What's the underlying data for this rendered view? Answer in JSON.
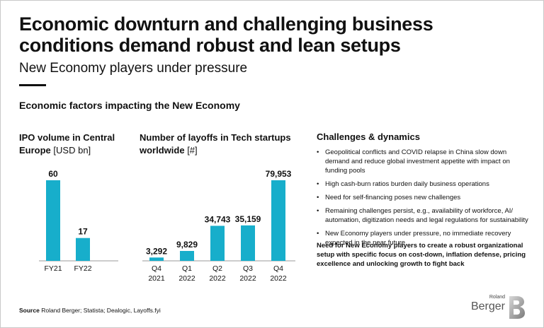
{
  "header": {
    "title": "Economic downturn and challenging business conditions demand robust and lean setups",
    "subtitle": "New Economy players under pressure",
    "section_title": "Economic factors impacting the New Economy"
  },
  "ipo_chart": {
    "title_bold": "IPO volume in Central Europe",
    "title_unit": "[USD bn]"
  },
  "layoffs_chart": {
    "title_bold": "Number of layoffs in Tech startups worldwide",
    "title_unit": "[#]"
  },
  "chart_data": [
    {
      "type": "bar",
      "title": "IPO volume in Central Europe [USD bn]",
      "categories": [
        "FY21",
        "FY22"
      ],
      "values": [
        60,
        17
      ],
      "value_labels": [
        "60",
        "17"
      ],
      "ylim": [
        0,
        60
      ],
      "color": "#17aecb"
    },
    {
      "type": "bar",
      "title": "Number of layoffs in Tech startups worldwide [#]",
      "categories": [
        [
          "Q4",
          "2021"
        ],
        [
          "Q1",
          "2022"
        ],
        [
          "Q2",
          "2022"
        ],
        [
          "Q3",
          "2022"
        ],
        [
          "Q4",
          "2022"
        ]
      ],
      "values": [
        3292,
        9829,
        34743,
        35159,
        79953
      ],
      "value_labels": [
        "3,292",
        "9,829",
        "34,743",
        "35,159",
        "79,953"
      ],
      "ylim": [
        0,
        79953
      ],
      "color": "#17aecb"
    }
  ],
  "challenges": {
    "title": "Challenges & dynamics",
    "bullets": [
      "Geopolitical conflicts and COVID relapse in China slow down demand and reduce global investment appetite with impact on funding pools",
      "High cash-burn ratios burden daily business operations",
      "Need for self-financing poses new challenges",
      "Remaining challenges persist, e.g., availability of workforce, AI/ automation, digitization needs and legal regulations for sustainability",
      "New Economy players under pressure, no immediate recovery expected in the near future"
    ],
    "conclusion": "Need for New Economy players to create a robust organizational setup with specific focus on cost-down, inflation defense, pricing excellence and unlocking growth to fight back"
  },
  "footer": {
    "source_label": "Source",
    "source_text": "Roland Berger; Statista; Dealogic, Layoffs.fyi",
    "logo_small": "Roland",
    "logo_big": "Berger"
  },
  "colors": {
    "bar": "#17aecb",
    "text": "#111111"
  },
  "icons": {
    "logo": "roland-berger-logo-icon"
  }
}
